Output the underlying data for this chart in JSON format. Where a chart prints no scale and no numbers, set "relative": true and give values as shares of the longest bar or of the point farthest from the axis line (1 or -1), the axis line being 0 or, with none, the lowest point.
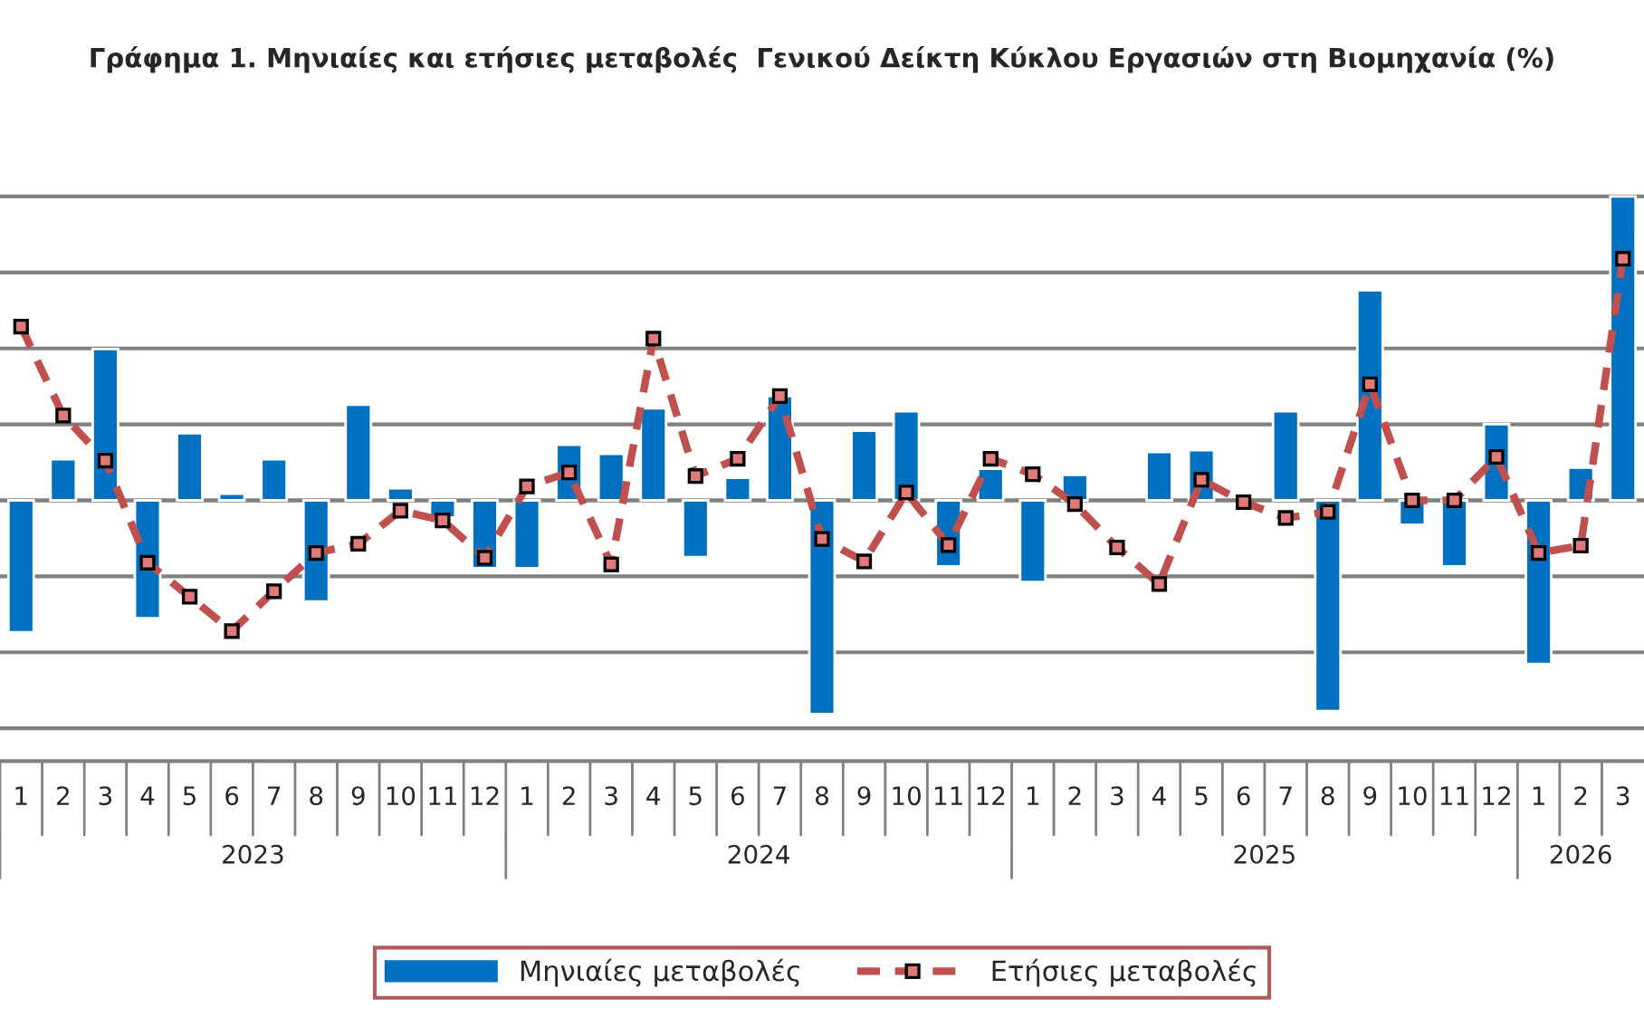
{
  "chart_data": {
    "type": "bar",
    "title": "Γράφημα 1. Μηνιαίες και ετήσιες μεταβολές  Γενικού Δείκτη Κύκλου Εργασιών στη Βιομηχανία (%)",
    "relative": true,
    "grid": "y",
    "legend": "bottom",
    "categories": [
      "1",
      "2",
      "3",
      "4",
      "5",
      "6",
      "7",
      "8",
      "9",
      "10",
      "11",
      "12",
      "1",
      "2",
      "3",
      "4",
      "5",
      "6",
      "7",
      "8",
      "9",
      "10",
      "11",
      "12",
      "1",
      "2",
      "3",
      "4",
      "5",
      "6",
      "7",
      "8",
      "9",
      "10",
      "11",
      "12",
      "1",
      "2",
      "3"
    ],
    "annotations": [
      "2023",
      "2024",
      "2025",
      "2026"
    ],
    "series": [
      {
        "name": "Μηνιαίες μεταβολές",
        "color": "#0070c0",
        "values": [
          -0.434,
          0.135,
          0.498,
          -0.388,
          0.221,
          0.022,
          0.135,
          -0.333,
          0.315,
          0.04,
          -0.056,
          -0.223,
          -0.223,
          0.183,
          0.153,
          0.303,
          -0.187,
          0.074,
          0.343,
          -0.703,
          0.229,
          0.293,
          -0.217,
          0.104,
          -0.269,
          0.084,
          null,
          0.159,
          0.165,
          null,
          0.293,
          -0.693,
          0.691,
          -0.08,
          -0.217,
          0.251,
          -0.538,
          0.108,
          1.0
        ]
      },
      {
        "name": "Ετήσιες μεταβολές",
        "type": "line",
        "color": "#c0504d",
        "marker": "square",
        "line_style": "dashed",
        "values": [
          0.572,
          0.279,
          0.131,
          -0.205,
          -0.317,
          -0.43,
          -0.299,
          -0.173,
          -0.143,
          -0.034,
          -0.066,
          -0.189,
          0.046,
          0.092,
          -0.211,
          0.532,
          0.08,
          0.137,
          0.343,
          -0.127,
          -0.201,
          0.026,
          -0.147,
          0.137,
          0.086,
          -0.012,
          -0.155,
          -0.275,
          0.068,
          -0.006,
          -0.058,
          -0.038,
          0.382,
          0,
          0,
          0.143,
          -0.173,
          -0.149,
          0.795
        ]
      }
    ]
  }
}
